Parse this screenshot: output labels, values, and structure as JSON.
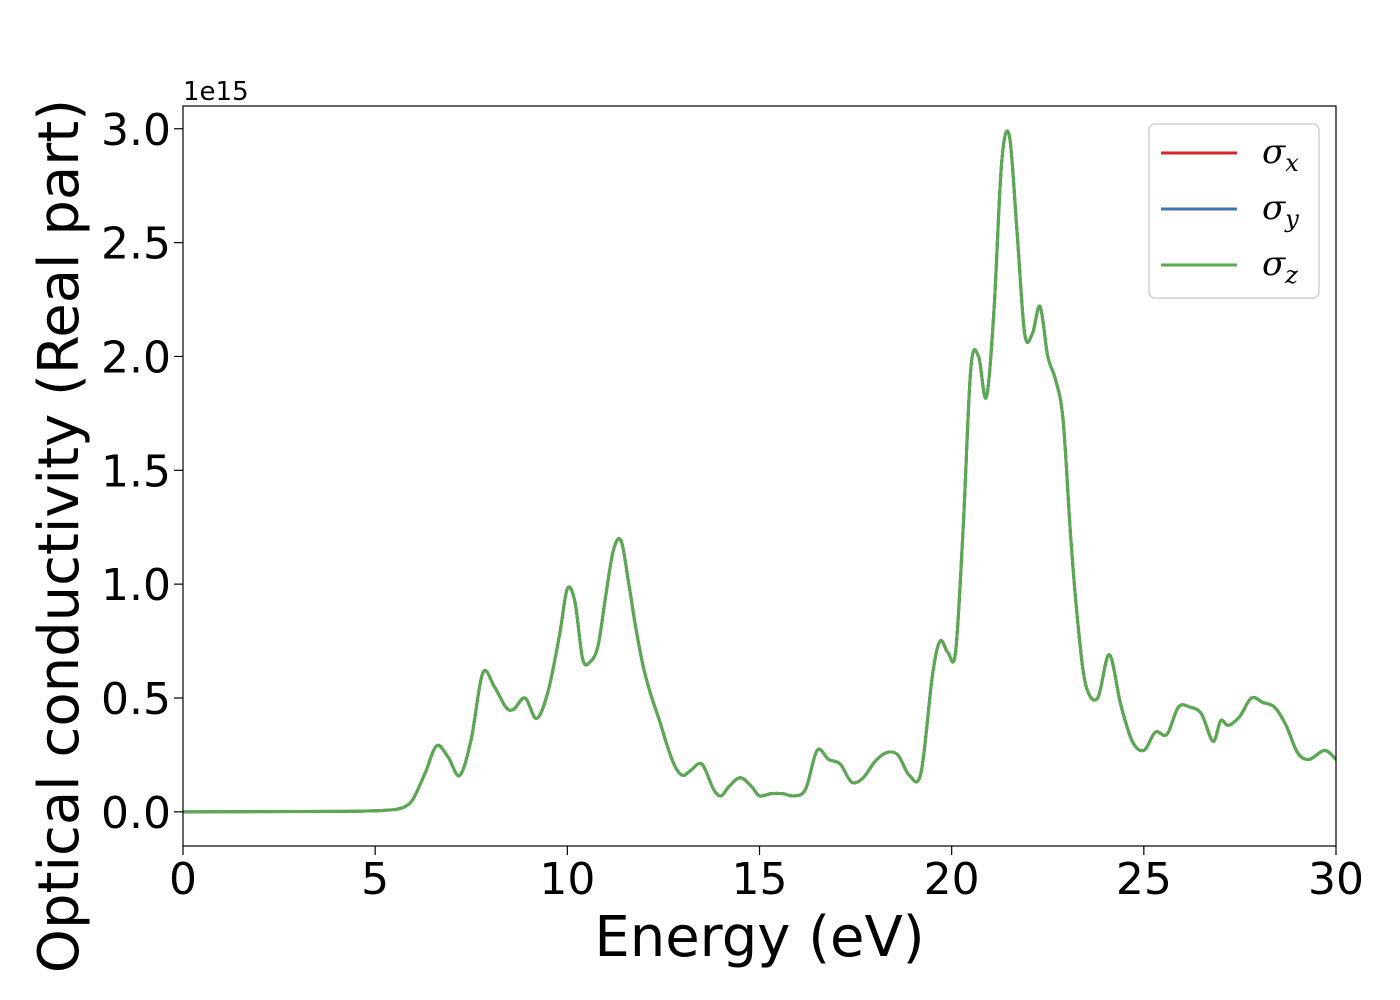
{
  "chart_data": {
    "type": "line",
    "title": "",
    "xlabel": "Energy (eV)",
    "ylabel": "Optical conductivity (Real part)",
    "y_offset_label": "1e15",
    "xlim": [
      0,
      30
    ],
    "ylim": [
      -0.15,
      3.1
    ],
    "x_ticks": [
      0,
      5,
      10,
      15,
      20,
      25,
      30
    ],
    "x_tick_labels": [
      "0",
      "5",
      "10",
      "15",
      "20",
      "25",
      "30"
    ],
    "y_ticks": [
      0.0,
      0.5,
      1.0,
      1.5,
      2.0,
      2.5,
      3.0
    ],
    "y_tick_labels": [
      "0.0",
      "0.5",
      "1.0",
      "1.5",
      "2.0",
      "2.5",
      "3.0"
    ],
    "grid": false,
    "legend_position": "top-right",
    "x": [
      0,
      4.0,
      5.0,
      5.5,
      5.8,
      6.0,
      6.3,
      6.6,
      6.9,
      7.2,
      7.5,
      7.8,
      8.1,
      8.4,
      8.6,
      8.9,
      9.2,
      9.5,
      9.8,
      10.0,
      10.2,
      10.4,
      10.6,
      10.8,
      11.0,
      11.2,
      11.4,
      11.6,
      11.8,
      12.0,
      12.2,
      12.4,
      12.6,
      12.8,
      13.0,
      13.2,
      13.5,
      13.8,
      14.0,
      14.2,
      14.5,
      14.8,
      15.0,
      15.3,
      15.6,
      15.9,
      16.2,
      16.5,
      16.8,
      17.1,
      17.4,
      17.7,
      18.0,
      18.3,
      18.6,
      18.9,
      19.2,
      19.5,
      19.7,
      19.9,
      20.1,
      20.3,
      20.5,
      20.7,
      20.9,
      21.1,
      21.3,
      21.5,
      21.7,
      21.9,
      22.1,
      22.3,
      22.5,
      22.7,
      22.9,
      23.1,
      23.3,
      23.5,
      23.8,
      24.1,
      24.4,
      24.7,
      25.0,
      25.3,
      25.6,
      25.9,
      26.2,
      26.5,
      26.8,
      27.0,
      27.2,
      27.5,
      27.8,
      28.1,
      28.4,
      28.7,
      29.0,
      29.3,
      29.7,
      30.0
    ],
    "series": [
      {
        "name": "σ_x",
        "color": "#d62728",
        "values": [
          0,
          0.002,
          0.005,
          0.01,
          0.025,
          0.06,
          0.17,
          0.29,
          0.24,
          0.16,
          0.32,
          0.61,
          0.55,
          0.46,
          0.45,
          0.5,
          0.41,
          0.53,
          0.78,
          0.98,
          0.92,
          0.67,
          0.66,
          0.73,
          0.95,
          1.15,
          1.19,
          1.0,
          0.79,
          0.62,
          0.5,
          0.4,
          0.29,
          0.2,
          0.16,
          0.18,
          0.21,
          0.1,
          0.07,
          0.11,
          0.15,
          0.11,
          0.07,
          0.08,
          0.08,
          0.07,
          0.1,
          0.27,
          0.23,
          0.21,
          0.13,
          0.15,
          0.22,
          0.26,
          0.25,
          0.16,
          0.17,
          0.6,
          0.75,
          0.7,
          0.7,
          1.25,
          1.95,
          2.0,
          1.82,
          2.2,
          2.85,
          2.97,
          2.55,
          2.1,
          2.1,
          2.22,
          2.0,
          1.9,
          1.72,
          1.2,
          0.8,
          0.55,
          0.5,
          0.69,
          0.47,
          0.31,
          0.27,
          0.35,
          0.34,
          0.46,
          0.46,
          0.43,
          0.31,
          0.4,
          0.38,
          0.42,
          0.5,
          0.48,
          0.46,
          0.38,
          0.26,
          0.23,
          0.27,
          0.23
        ]
      },
      {
        "name": "σ_y",
        "color": "#3a75b0",
        "values": [
          0,
          0.002,
          0.005,
          0.01,
          0.025,
          0.06,
          0.17,
          0.29,
          0.24,
          0.16,
          0.32,
          0.61,
          0.55,
          0.46,
          0.45,
          0.5,
          0.41,
          0.53,
          0.78,
          0.98,
          0.92,
          0.67,
          0.66,
          0.73,
          0.95,
          1.15,
          1.19,
          1.0,
          0.79,
          0.62,
          0.5,
          0.4,
          0.29,
          0.2,
          0.16,
          0.18,
          0.21,
          0.1,
          0.07,
          0.11,
          0.15,
          0.11,
          0.07,
          0.08,
          0.08,
          0.07,
          0.1,
          0.27,
          0.23,
          0.21,
          0.13,
          0.15,
          0.22,
          0.26,
          0.25,
          0.16,
          0.17,
          0.6,
          0.75,
          0.7,
          0.7,
          1.25,
          1.95,
          2.0,
          1.82,
          2.2,
          2.85,
          2.97,
          2.55,
          2.1,
          2.1,
          2.22,
          2.0,
          1.9,
          1.72,
          1.2,
          0.8,
          0.55,
          0.5,
          0.69,
          0.47,
          0.31,
          0.27,
          0.35,
          0.34,
          0.46,
          0.46,
          0.43,
          0.31,
          0.4,
          0.38,
          0.42,
          0.5,
          0.48,
          0.46,
          0.38,
          0.26,
          0.23,
          0.27,
          0.23
        ]
      },
      {
        "name": "σ_z",
        "color": "#5aaa50",
        "values": [
          0,
          0.002,
          0.005,
          0.01,
          0.025,
          0.06,
          0.17,
          0.29,
          0.24,
          0.16,
          0.32,
          0.61,
          0.55,
          0.46,
          0.45,
          0.5,
          0.41,
          0.53,
          0.78,
          0.98,
          0.92,
          0.67,
          0.66,
          0.73,
          0.95,
          1.15,
          1.19,
          1.0,
          0.79,
          0.62,
          0.5,
          0.4,
          0.29,
          0.2,
          0.16,
          0.18,
          0.21,
          0.1,
          0.07,
          0.11,
          0.15,
          0.11,
          0.07,
          0.08,
          0.08,
          0.07,
          0.1,
          0.27,
          0.23,
          0.21,
          0.13,
          0.15,
          0.22,
          0.26,
          0.25,
          0.16,
          0.17,
          0.6,
          0.75,
          0.7,
          0.7,
          1.25,
          1.95,
          2.0,
          1.82,
          2.2,
          2.85,
          2.97,
          2.55,
          2.1,
          2.1,
          2.22,
          2.0,
          1.9,
          1.72,
          1.2,
          0.8,
          0.55,
          0.5,
          0.69,
          0.47,
          0.31,
          0.27,
          0.35,
          0.34,
          0.46,
          0.46,
          0.43,
          0.31,
          0.4,
          0.38,
          0.42,
          0.5,
          0.48,
          0.46,
          0.38,
          0.26,
          0.23,
          0.27,
          0.23
        ]
      }
    ],
    "legend": [
      {
        "symbol": "σ",
        "sub": "x",
        "color": "#d62728"
      },
      {
        "symbol": "σ",
        "sub": "y",
        "color": "#3a75b0"
      },
      {
        "symbol": "σ",
        "sub": "z",
        "color": "#5aaa50"
      }
    ]
  }
}
